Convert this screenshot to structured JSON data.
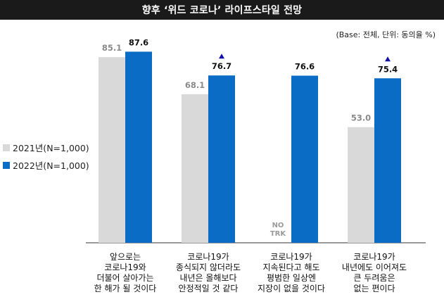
{
  "title": "향후 ‘위드 코로나’ 라이프스타일 전망",
  "base_note": "(Base: 전체, 단위: 동의율 %)",
  "colors": {
    "y2021": "#d9d9d9",
    "y2022": "#0a6cc4",
    "arrow": "#1010a8"
  },
  "chart_data": {
    "type": "bar",
    "title": "향후 ‘위드 코로나’ 라이프스타일 전망",
    "xlabel": "",
    "ylabel": "",
    "ylim": [
      0,
      100
    ],
    "grid": false,
    "legend_position": "left",
    "categories": [
      [
        "앞으로는",
        "코로나19와",
        "더불어 살아가는",
        "한 해가 될 것이다"
      ],
      [
        "코로나19가",
        "종식되지 않더라도",
        "내년은 올해보다",
        "안정적일 것 같다"
      ],
      [
        "코로나19가",
        "지속된다고 해도",
        "평범한 일상엔",
        "지장이 없을 것이다"
      ],
      [
        "코로나19가",
        "내년에도 이어져도",
        "큰 두려움은",
        "없는 편이다"
      ]
    ],
    "series": [
      {
        "name": "2021년(N=1,000)",
        "values": [
          85.1,
          68.1,
          null,
          53.0
        ],
        "labels": [
          "85.1",
          "68.1",
          "NO\nTRK",
          "53.0"
        ]
      },
      {
        "name": "2022년(N=1,000)",
        "values": [
          87.6,
          76.7,
          76.6,
          75.4
        ],
        "labels": [
          "87.6",
          "76.7",
          "76.6",
          "75.4"
        ]
      }
    ],
    "increase_marker": [
      false,
      true,
      false,
      true
    ]
  }
}
